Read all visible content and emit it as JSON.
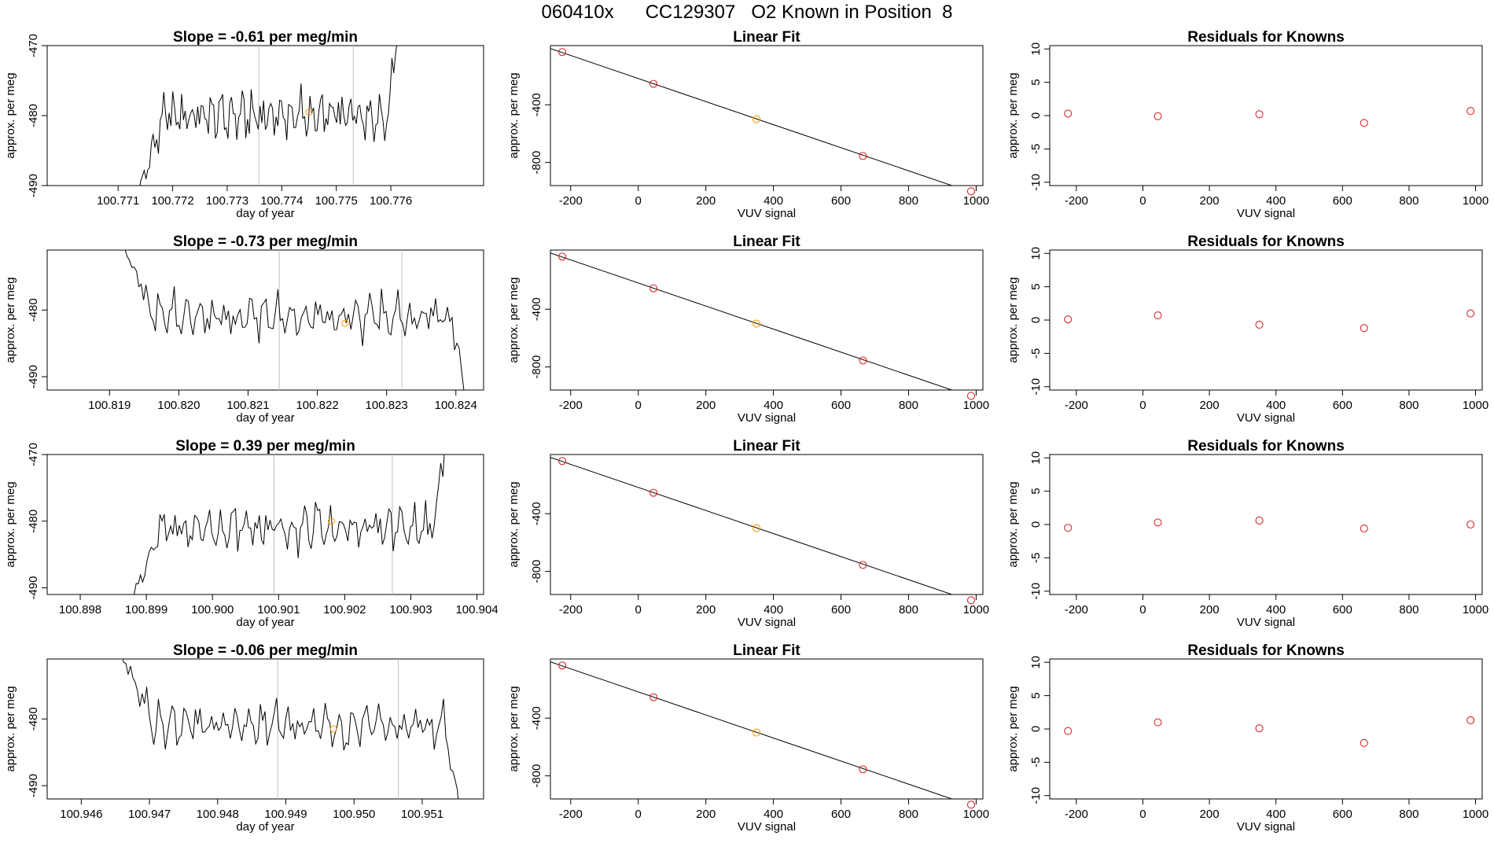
{
  "title": "060410x      CC129307   O2 Known in Position  8",
  "colors": {
    "line": "#000000",
    "point": "#d62728",
    "highlight": "#ff9900",
    "grid": "#bfbfbf"
  },
  "chart_data": [
    {
      "type": "line",
      "title": "Slope =  -0.61  per meg/min",
      "xlabel": "day of year",
      "ylabel": "approx. per meg",
      "xlim": [
        100.7697,
        100.7777
      ],
      "ylim": [
        -490,
        -470
      ],
      "xticks": [
        100.771,
        100.772,
        100.773,
        100.774,
        100.775,
        100.776
      ],
      "yticks": [
        -490,
        -480,
        -470
      ],
      "vlines": [
        100.77358,
        100.77531
      ],
      "highlight_point": [
        100.7745,
        -479.5
      ],
      "series_start": 100.77125,
      "series_end": 100.77615,
      "series_level": -480
    },
    {
      "type": "scatter",
      "title": "Linear Fit",
      "xlabel": "VUV signal",
      "ylabel": "approx. per meg",
      "xlim": [
        -260,
        1020
      ],
      "ylim": [
        -960,
        10
      ],
      "xticks": [
        -200,
        0,
        200,
        400,
        600,
        800,
        1000
      ],
      "yticks": [
        -800,
        -400
      ],
      "x": [
        -225,
        45,
        350,
        665,
        985
      ],
      "y": [
        -35,
        -255,
        -500,
        -755,
        -1000
      ],
      "highlight_index": 2
    },
    {
      "type": "scatter",
      "title": "Residuals for Knowns",
      "xlabel": "VUV signal",
      "ylabel": "approx. per meg",
      "xlim": [
        -280,
        1020
      ],
      "ylim": [
        -10.5,
        10.5
      ],
      "xticks": [
        -200,
        0,
        200,
        400,
        600,
        800,
        1000
      ],
      "yticks": [
        -10,
        -5,
        0,
        5,
        10
      ],
      "x": [
        -225,
        45,
        350,
        665,
        985
      ],
      "y": [
        0.3,
        -0.1,
        0.2,
        -1.1,
        0.7
      ]
    },
    {
      "type": "line",
      "title": "Slope =  -0.73  per meg/min",
      "xlabel": "day of year",
      "ylabel": "approx. per meg",
      "xlim": [
        100.8181,
        100.8244
      ],
      "ylim": [
        -492,
        -471
      ],
      "xticks": [
        100.819,
        100.82,
        100.821,
        100.822,
        100.823,
        100.824
      ],
      "yticks": [
        -490,
        -480
      ],
      "vlines": [
        100.82145,
        100.82322
      ],
      "highlight_point": [
        100.8224,
        -482
      ],
      "series_start": 100.81905,
      "series_end": 100.82415,
      "series_level": -481
    },
    {
      "type": "scatter",
      "title": "Linear Fit",
      "xlabel": "VUV signal",
      "ylabel": "approx. per meg",
      "xlim": [
        -260,
        1020
      ],
      "ylim": [
        -960,
        10
      ],
      "xticks": [
        -200,
        0,
        200,
        400,
        600,
        800,
        1000
      ],
      "yticks": [
        -800,
        -400
      ],
      "x": [
        -225,
        45,
        350,
        665,
        985
      ],
      "y": [
        -35,
        -255,
        -500,
        -755,
        -1000
      ],
      "highlight_index": 2
    },
    {
      "type": "scatter",
      "title": "Residuals for Knowns",
      "xlabel": "VUV signal",
      "ylabel": "approx. per meg",
      "xlim": [
        -280,
        1020
      ],
      "ylim": [
        -10.5,
        10.5
      ],
      "xticks": [
        -200,
        0,
        200,
        400,
        600,
        800,
        1000
      ],
      "yticks": [
        -10,
        -5,
        0,
        5,
        10
      ],
      "x": [
        -225,
        45,
        350,
        665,
        985
      ],
      "y": [
        0.1,
        0.7,
        -0.7,
        -1.2,
        1.0
      ]
    },
    {
      "type": "line",
      "title": "Slope =  0.39  per meg/min",
      "xlabel": "day of year",
      "ylabel": "approx. per meg",
      "xlim": [
        100.8975,
        100.9041
      ],
      "ylim": [
        -491,
        -470
      ],
      "xticks": [
        100.898,
        100.899,
        100.9,
        100.901,
        100.902,
        100.903,
        100.904
      ],
      "yticks": [
        -490,
        -480,
        -470
      ],
      "vlines": [
        100.90093,
        100.90272
      ],
      "highlight_point": [
        100.9018,
        -480
      ],
      "series_start": 100.89865,
      "series_end": 100.90355,
      "series_level": -481
    },
    {
      "type": "scatter",
      "title": "Linear Fit",
      "xlabel": "VUV signal",
      "ylabel": "approx. per meg",
      "xlim": [
        -260,
        1020
      ],
      "ylim": [
        -960,
        10
      ],
      "xticks": [
        -200,
        0,
        200,
        400,
        600,
        800,
        1000
      ],
      "yticks": [
        -800,
        -400
      ],
      "x": [
        -225,
        45,
        350,
        665,
        985
      ],
      "y": [
        -35,
        -255,
        -500,
        -755,
        -1000
      ],
      "highlight_index": 2
    },
    {
      "type": "scatter",
      "title": "Residuals for Knowns",
      "xlabel": "VUV signal",
      "ylabel": "approx. per meg",
      "xlim": [
        -280,
        1020
      ],
      "ylim": [
        -10.5,
        10.5
      ],
      "xticks": [
        -200,
        0,
        200,
        400,
        600,
        800,
        1000
      ],
      "yticks": [
        -10,
        -5,
        0,
        5,
        10
      ],
      "x": [
        -225,
        45,
        350,
        665,
        985
      ],
      "y": [
        -0.5,
        0.3,
        0.6,
        -0.6,
        0.0
      ]
    },
    {
      "type": "line",
      "title": "Slope =  -0.06  per meg/min",
      "xlabel": "day of year",
      "ylabel": "approx. per meg",
      "xlim": [
        100.9455,
        100.9519
      ],
      "ylim": [
        -492,
        -471
      ],
      "xticks": [
        100.946,
        100.947,
        100.948,
        100.949,
        100.95,
        100.951
      ],
      "yticks": [
        -490,
        -480
      ],
      "vlines": [
        100.94888,
        100.95065
      ],
      "highlight_point": [
        100.9497,
        -481.5
      ],
      "series_start": 100.94645,
      "series_end": 100.95155,
      "series_level": -481
    },
    {
      "type": "scatter",
      "title": "Linear Fit",
      "xlabel": "VUV signal",
      "ylabel": "approx. per meg",
      "xlim": [
        -260,
        1020
      ],
      "ylim": [
        -960,
        10
      ],
      "xticks": [
        -200,
        0,
        200,
        400,
        600,
        800,
        1000
      ],
      "yticks": [
        -800,
        -400
      ],
      "x": [
        -225,
        45,
        350,
        665,
        985
      ],
      "y": [
        -35,
        -255,
        -500,
        -755,
        -1000
      ],
      "highlight_index": 2
    },
    {
      "type": "scatter",
      "title": "Residuals for Knowns",
      "xlabel": "VUV signal",
      "ylabel": "approx. per meg",
      "xlim": [
        -280,
        1020
      ],
      "ylim": [
        -10.5,
        10.5
      ],
      "xticks": [
        -200,
        0,
        200,
        400,
        600,
        800,
        1000
      ],
      "yticks": [
        -10,
        -5,
        0,
        5,
        10
      ],
      "x": [
        -225,
        45,
        350,
        665,
        985
      ],
      "y": [
        -0.3,
        1.0,
        0.1,
        -2.1,
        1.3
      ]
    }
  ]
}
